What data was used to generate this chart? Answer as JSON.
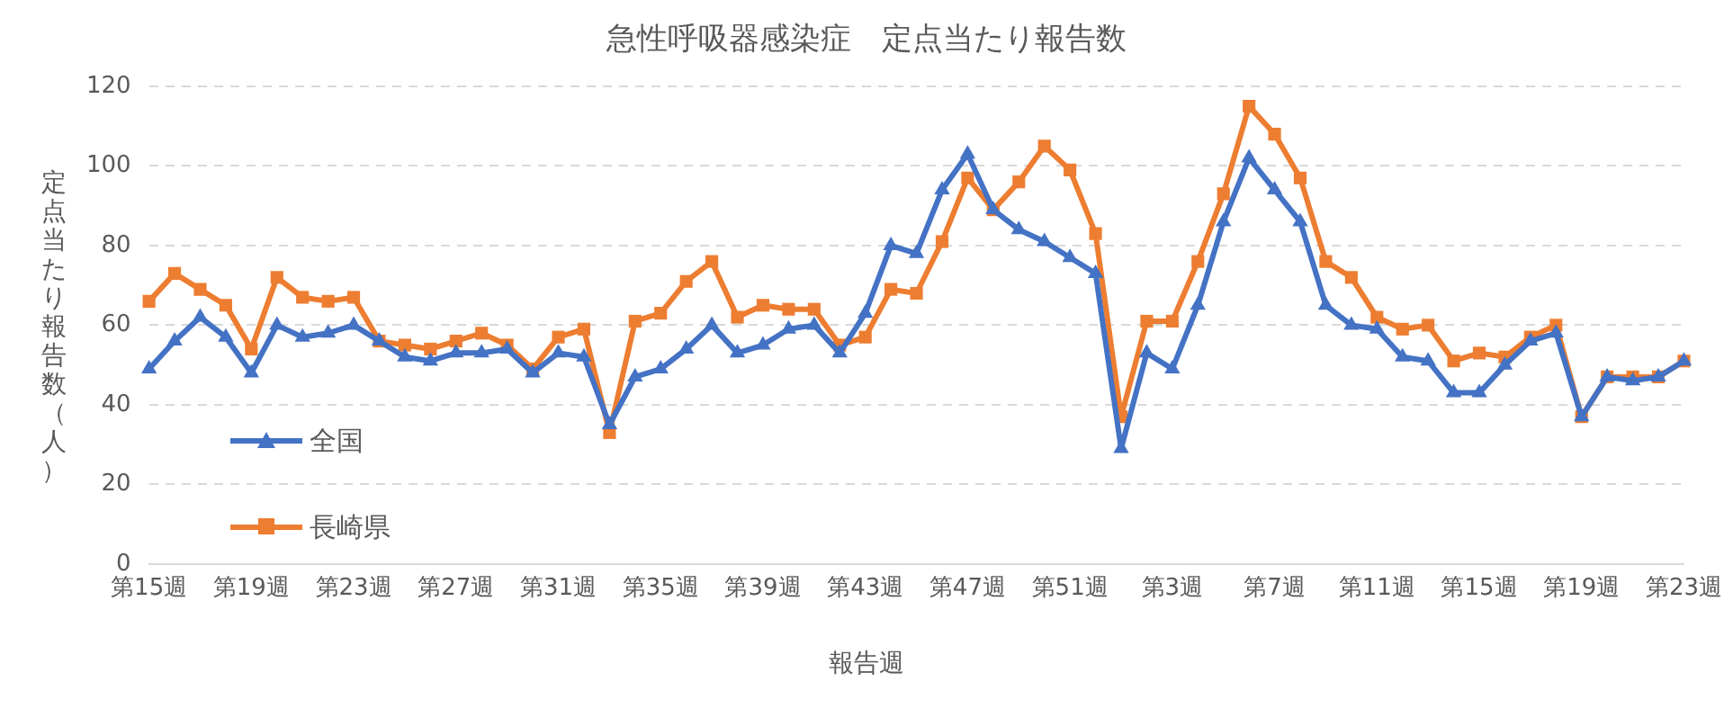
{
  "chart_data": {
    "type": "line",
    "title": "急性呼吸器感染症　定点当たり報告数",
    "xlabel": "報告週",
    "ylabel": "定点当たり報告数（人）",
    "categories": [
      "第15週",
      null,
      null,
      null,
      "第19週",
      null,
      null,
      null,
      "第23週",
      null,
      null,
      null,
      "第27週",
      null,
      null,
      null,
      "第31週",
      null,
      null,
      null,
      "第35週",
      null,
      null,
      null,
      "第39週",
      null,
      null,
      null,
      "第43週",
      null,
      null,
      null,
      "第47週",
      null,
      null,
      null,
      "第51週",
      null,
      null,
      null,
      "第3週",
      null,
      null,
      null,
      "第7週",
      null,
      null,
      null,
      "第11週",
      null,
      null,
      null,
      "第15週",
      null,
      null,
      null,
      "第19週",
      null,
      null,
      null,
      "第23週"
    ],
    "series": [
      {
        "name": "全国",
        "color": "#4472c4",
        "marker": "triangle",
        "values": [
          49,
          56,
          62,
          57,
          48,
          60,
          57,
          58,
          60,
          56,
          52,
          51,
          53,
          53,
          54,
          48,
          53,
          52,
          35,
          47,
          49,
          54,
          60,
          53,
          55,
          59,
          60,
          53,
          63,
          80,
          78,
          94,
          103,
          89,
          84,
          81,
          77,
          73,
          29,
          53,
          49,
          65,
          86,
          102,
          94,
          86,
          65,
          60,
          59,
          52,
          51,
          43,
          43,
          50,
          56,
          58,
          37,
          47,
          46,
          47,
          51
        ]
      },
      {
        "name": "長崎県",
        "color": "#ed7d31",
        "marker": "square",
        "values": [
          66,
          73,
          69,
          65,
          54,
          72,
          67,
          66,
          67,
          56,
          55,
          54,
          56,
          58,
          55,
          49,
          57,
          59,
          33,
          61,
          63,
          71,
          76,
          62,
          65,
          64,
          64,
          55,
          57,
          69,
          68,
          81,
          97,
          89,
          96,
          105,
          99,
          83,
          37,
          61,
          61,
          76,
          93,
          115,
          108,
          97,
          76,
          72,
          62,
          59,
          60,
          51,
          53,
          52,
          57,
          60,
          37,
          47,
          47,
          47,
          51
        ]
      }
    ],
    "ylim": [
      0,
      120
    ],
    "yticks": [
      0,
      20,
      40,
      60,
      80,
      100,
      120
    ],
    "grid": "y",
    "legend": "bottom left",
    "line_style": "solid"
  }
}
